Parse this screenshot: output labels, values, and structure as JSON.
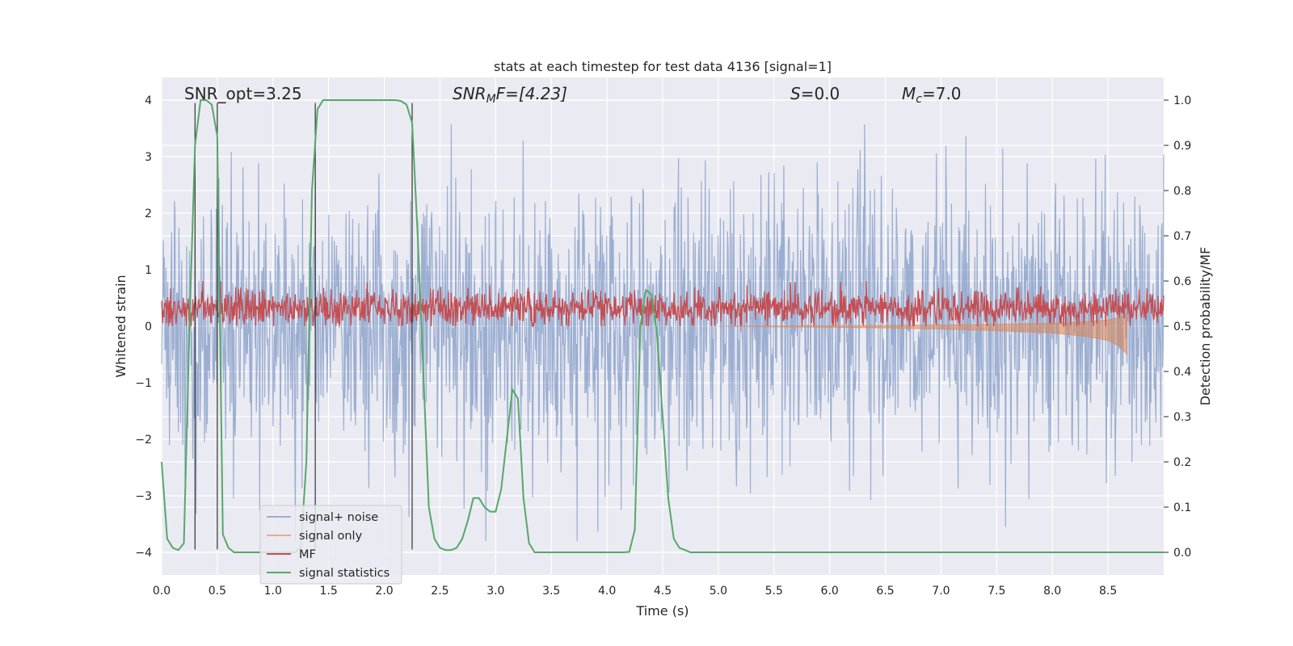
{
  "chart_data": {
    "type": "line",
    "title": "stats at each timestep for test data 4136 [signal=1]",
    "xlabel": "Time (s)",
    "ylabel": "Whitened strain",
    "y2label": "Detection probability/MF",
    "xlim": [
      0,
      9.0
    ],
    "ylim": [
      -4.4,
      4.4
    ],
    "y2lim": [
      -0.05,
      1.05
    ],
    "xticks": [
      0.0,
      0.5,
      1.0,
      1.5,
      2.0,
      2.5,
      3.0,
      3.5,
      4.0,
      4.5,
      5.0,
      5.5,
      6.0,
      6.5,
      7.0,
      7.5,
      8.0,
      8.5
    ],
    "xtick_labels": [
      "0.0",
      "0.5",
      "1.0",
      "1.5",
      "2.0",
      "2.5",
      "3.0",
      "3.5",
      "4.0",
      "4.5",
      "5.0",
      "5.5",
      "6.0",
      "6.5",
      "7.0",
      "7.5",
      "8.0",
      "8.5"
    ],
    "yticks": [
      -4,
      -3,
      -2,
      -1,
      0,
      1,
      2,
      3,
      4
    ],
    "ytick_labels": [
      "−4",
      "−3",
      "−2",
      "−1",
      "0",
      "1",
      "2",
      "3",
      "4"
    ],
    "y2ticks": [
      0.0,
      0.1,
      0.2,
      0.3,
      0.4,
      0.5,
      0.6,
      0.7,
      0.8,
      0.9,
      1.0
    ],
    "y2tick_labels": [
      "0.0",
      "0.1",
      "0.2",
      "0.3",
      "0.4",
      "0.5",
      "0.6",
      "0.7",
      "0.8",
      "0.9",
      "1.0"
    ],
    "annotations": {
      "snr_opt": "SNR_opt=3.25",
      "snr_mf_main": "SNR",
      "snr_mf_sub": "M",
      "snr_mf_rest": "F=[4.23]",
      "s_main": "S",
      "s_rest": "=0.0",
      "mc_main": "M",
      "mc_sub": "c",
      "mc_rest": "=7.0"
    },
    "vlines": [
      0.3,
      0.5,
      1.38,
      2.25
    ],
    "legend": {
      "position": "lower-left",
      "entries": [
        "signal+ noise",
        "signal only",
        "MF",
        "signal statistics"
      ]
    },
    "series": [
      {
        "name": "signal statistics",
        "axis": "right",
        "color": "#55a868",
        "x": [
          0.0,
          0.05,
          0.1,
          0.15,
          0.2,
          0.25,
          0.3,
          0.35,
          0.4,
          0.45,
          0.5,
          0.55,
          0.6,
          0.65,
          0.7,
          0.75,
          0.8,
          0.85,
          0.9,
          0.95,
          1.0,
          1.05,
          1.1,
          1.15,
          1.2,
          1.25,
          1.3,
          1.35,
          1.4,
          1.45,
          1.5,
          1.55,
          1.6,
          1.65,
          1.7,
          1.75,
          1.8,
          1.85,
          1.9,
          1.95,
          2.0,
          2.05,
          2.1,
          2.15,
          2.2,
          2.25,
          2.3,
          2.35,
          2.4,
          2.45,
          2.5,
          2.55,
          2.6,
          2.65,
          2.7,
          2.75,
          2.8,
          2.85,
          2.9,
          2.95,
          3.0,
          3.05,
          3.1,
          3.15,
          3.2,
          3.25,
          3.3,
          3.35,
          3.4,
          3.45,
          3.5,
          3.55,
          3.6,
          3.65,
          3.7,
          3.75,
          3.8,
          3.85,
          3.9,
          3.95,
          4.0,
          4.05,
          4.1,
          4.15,
          4.2,
          4.25,
          4.3,
          4.35,
          4.4,
          4.45,
          4.5,
          4.55,
          4.6,
          4.65,
          4.7,
          4.75,
          4.8,
          4.85,
          4.9,
          4.95,
          5.0,
          5.5,
          6.0,
          6.5,
          7.0,
          7.5,
          8.0,
          8.5,
          9.0
        ],
        "y": [
          0.2,
          0.03,
          0.01,
          0.005,
          0.02,
          0.5,
          0.9,
          1.0,
          1.0,
          0.99,
          0.92,
          0.04,
          0.01,
          0.0,
          0.0,
          0.0,
          0.0,
          0.0,
          0.0,
          0.0,
          0.0,
          0.0,
          0.0,
          0.0,
          0.0,
          0.01,
          0.2,
          0.8,
          0.98,
          1.0,
          1.0,
          1.0,
          1.0,
          1.0,
          1.0,
          1.0,
          1.0,
          1.0,
          1.0,
          1.0,
          1.0,
          1.0,
          1.0,
          0.998,
          0.99,
          0.95,
          0.7,
          0.4,
          0.1,
          0.03,
          0.01,
          0.005,
          0.005,
          0.01,
          0.03,
          0.07,
          0.12,
          0.12,
          0.1,
          0.09,
          0.09,
          0.14,
          0.25,
          0.36,
          0.34,
          0.12,
          0.02,
          0.0,
          0.0,
          0.0,
          0.0,
          0.0,
          0.0,
          0.0,
          0.0,
          0.0,
          0.0,
          0.0,
          0.0,
          0.0,
          0.0,
          0.0,
          0.0,
          0.0,
          0.001,
          0.05,
          0.5,
          0.58,
          0.57,
          0.48,
          0.3,
          0.12,
          0.03,
          0.01,
          0.005,
          0.0,
          0.0,
          0.0,
          0.0,
          0.0,
          0.0,
          0.0,
          0.0,
          0.0,
          0.0,
          0.0,
          0.0,
          0.0,
          0.0
        ]
      },
      {
        "name": "signal+ noise",
        "axis": "left",
        "color": "#4c72b0",
        "description_range": [
          -3.8,
          3.9
        ]
      },
      {
        "name": "signal only",
        "axis": "left",
        "color": "#dd8452",
        "x": [
          5.0,
          5.5,
          6.0,
          6.5,
          7.0,
          7.5,
          8.0,
          8.3,
          8.5,
          8.6,
          8.67
        ],
        "y": [
          0.0,
          -0.01,
          -0.02,
          -0.03,
          -0.05,
          -0.08,
          -0.12,
          -0.18,
          -0.25,
          -0.35,
          -0.5
        ]
      },
      {
        "name": "MF",
        "axis": "left",
        "color": "#c44e52",
        "description_range": [
          0.0,
          0.8
        ]
      }
    ]
  }
}
